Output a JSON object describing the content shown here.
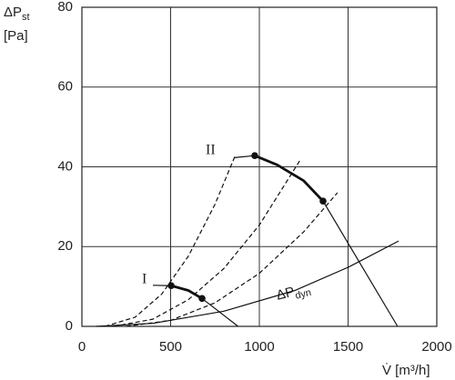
{
  "chart_data": {
    "type": "line",
    "xlim": [
      0,
      2000
    ],
    "ylim": [
      0,
      80
    ],
    "xticks": [
      0,
      500,
      1000,
      1500,
      2000
    ],
    "yticks": [
      0,
      20,
      40,
      60,
      80
    ],
    "grid": true,
    "color": "#111",
    "ylabel": {
      "main": "ΔP",
      "sub": "st",
      "unit": "[Pa]"
    },
    "xlabel": "V̇ [m³/h]",
    "annotations": [
      "I",
      "II",
      {
        "text": "ΔP",
        "sub": "dyn"
      }
    ],
    "series": [
      {
        "style": "dashed",
        "x": [
          130,
          300,
          450,
          600,
          750,
          862
        ],
        "values": [
          0,
          2.3,
          8.1,
          17.6,
          30.6,
          42.6
        ]
      },
      {
        "style": "dashed",
        "x": [
          180,
          400,
          600,
          800,
          1000,
          1230
        ],
        "values": [
          0,
          1.8,
          6.7,
          14.5,
          25.4,
          41.7
        ]
      },
      {
        "style": "dashed",
        "x": [
          250,
          500,
          750,
          1000,
          1250,
          1440
        ],
        "values": [
          0,
          1.5,
          5.9,
          13.3,
          23.7,
          33.5
        ]
      },
      {
        "style": "thin",
        "x": [
          80,
          400,
          800,
          1200,
          1500,
          1785
        ],
        "values": [
          0,
          0.75,
          3.8,
          9.0,
          14.8,
          21.4
        ]
      },
      {
        "style": "thin",
        "x": [
          400,
          503
        ],
        "values": [
          10.3,
          10.2
        ]
      },
      {
        "style": "thick",
        "x": [
          503,
          600,
          677
        ],
        "values": [
          10.2,
          9.0,
          7.0
        ]
      },
      {
        "style": "thin",
        "x": [
          677,
          880
        ],
        "values": [
          7.0,
          0
        ]
      },
      {
        "style": "thin",
        "x": [
          860,
          974
        ],
        "values": [
          42.3,
          42.8
        ]
      },
      {
        "style": "thick",
        "x": [
          974,
          1100,
          1250,
          1359
        ],
        "values": [
          42.8,
          40.5,
          36.5,
          31.4
        ]
      },
      {
        "style": "thin",
        "x": [
          1359,
          1779
        ],
        "values": [
          31.4,
          0
        ]
      },
      {
        "style": "points",
        "x": [
          503,
          677,
          974,
          1359
        ],
        "values": [
          10.2,
          7.0,
          42.8,
          31.4
        ]
      }
    ]
  }
}
